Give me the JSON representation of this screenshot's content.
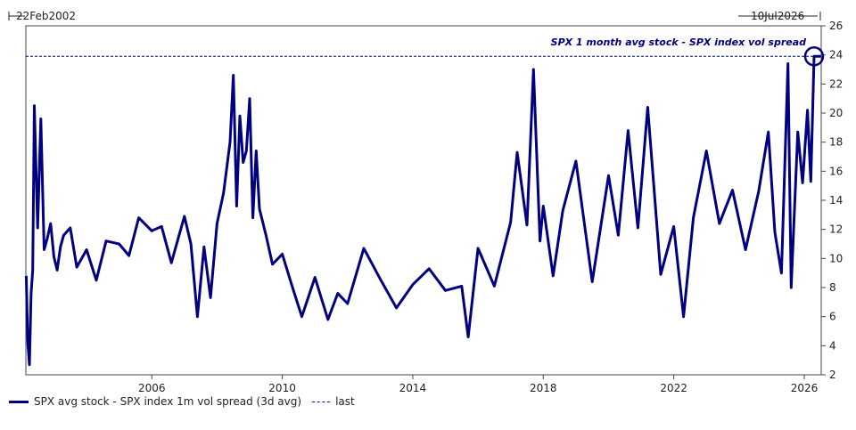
{
  "chart_data": {
    "type": "line",
    "start_label": "22Feb2002",
    "end_label": "10Jul2026",
    "annotation": "SPX 1 month avg stock - SPX index vol spread",
    "x_ticks": [
      "2006",
      "2010",
      "2014",
      "2018",
      "2022",
      "2026"
    ],
    "y_ticks": [
      2,
      4,
      6,
      8,
      10,
      12,
      14,
      16,
      18,
      20,
      22,
      24,
      26
    ],
    "ylim": [
      2,
      26
    ],
    "xlim": [
      2002.14,
      2026.52
    ],
    "last_value": 23.9,
    "series": [
      {
        "name": "SPX avg stock - SPX index 1m vol spread (3d avg)",
        "color": "#000080",
        "x": [
          2002.15,
          2002.2,
          2002.25,
          2002.3,
          2002.35,
          2002.4,
          2002.5,
          2002.6,
          2002.7,
          2002.8,
          2002.9,
          2003.0,
          2003.1,
          2003.2,
          2003.3,
          2003.5,
          2003.7,
          2004.0,
          2004.3,
          2004.6,
          2005.0,
          2005.3,
          2005.6,
          2006.0,
          2006.3,
          2006.6,
          2007.0,
          2007.2,
          2007.4,
          2007.6,
          2007.8,
          2008.0,
          2008.2,
          2008.4,
          2008.5,
          2008.6,
          2008.7,
          2008.8,
          2008.9,
          2009.0,
          2009.1,
          2009.2,
          2009.3,
          2009.5,
          2009.7,
          2010.0,
          2010.3,
          2010.6,
          2011.0,
          2011.4,
          2011.7,
          2012.0,
          2012.5,
          2013.0,
          2013.5,
          2014.0,
          2014.5,
          2015.0,
          2015.5,
          2015.7,
          2016.0,
          2016.5,
          2017.0,
          2017.2,
          2017.5,
          2017.7,
          2017.9,
          2018.0,
          2018.3,
          2018.6,
          2019.0,
          2019.5,
          2020.0,
          2020.3,
          2020.6,
          2020.9,
          2021.2,
          2021.6,
          2022.0,
          2022.3,
          2022.6,
          2023.0,
          2023.4,
          2023.8,
          2024.2,
          2024.6,
          2024.9,
          2025.1,
          2025.3,
          2025.5,
          2025.6,
          2025.8,
          2025.95,
          2026.1,
          2026.2,
          2026.3,
          2026.5
        ],
        "values": [
          8.8,
          4.2,
          2.7,
          7.6,
          9.2,
          20.5,
          12.1,
          19.6,
          10.6,
          11.4,
          12.4,
          10.1,
          9.2,
          10.8,
          11.6,
          12.1,
          9.4,
          10.6,
          8.5,
          11.2,
          11.0,
          10.2,
          12.8,
          11.9,
          12.2,
          9.7,
          12.9,
          11.0,
          6.0,
          10.8,
          7.3,
          12.4,
          14.5,
          18.0,
          22.6,
          13.6,
          19.8,
          16.6,
          17.4,
          21.0,
          12.8,
          17.4,
          13.4,
          11.6,
          9.6,
          10.3,
          8.1,
          6.0,
          8.7,
          5.8,
          7.6,
          6.9,
          10.7,
          8.6,
          6.6,
          8.2,
          9.3,
          7.8,
          8.1,
          4.6,
          10.7,
          8.1,
          12.5,
          17.3,
          12.3,
          23.0,
          11.2,
          13.6,
          8.8,
          13.3,
          16.7,
          8.4,
          15.7,
          11.6,
          18.8,
          12.1,
          20.4,
          8.9,
          12.2,
          6.0,
          12.8,
          17.4,
          12.4,
          14.7,
          10.6,
          14.6,
          18.7,
          11.8,
          9.0,
          23.4,
          8.0,
          18.7,
          15.2,
          20.2,
          15.3,
          23.9,
          23.9
        ]
      }
    ],
    "legend": {
      "line_label": "SPX avg stock - SPX index 1m vol spread (3d avg)",
      "dash_label": "last"
    }
  }
}
